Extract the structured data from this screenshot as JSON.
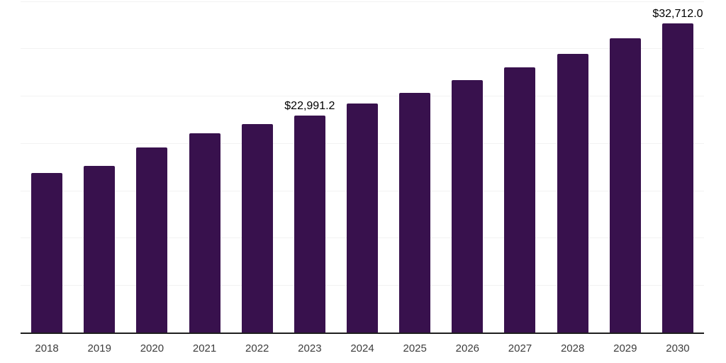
{
  "chart_data": {
    "type": "bar",
    "title": "",
    "xlabel": "",
    "ylabel": "",
    "categories": [
      "2018",
      "2019",
      "2020",
      "2021",
      "2022",
      "2023",
      "2024",
      "2025",
      "2026",
      "2027",
      "2028",
      "2029",
      "2030"
    ],
    "values": [
      16950,
      17650,
      19600,
      21100,
      22100,
      22991.2,
      24250,
      25400,
      26750,
      28100,
      29500,
      31150,
      32712
    ],
    "value_labels": {
      "2023": "$22,991.2",
      "2030": "$32,712.0"
    },
    "ylim": [
      0,
      35200
    ],
    "gridline_step": 5000,
    "grid": "horizontal-only",
    "legend": "none",
    "y_axis_ticks": "hidden",
    "colors": {
      "bar": "#38114D",
      "axis": "#1F1F1F",
      "gridline": "#F2F2F2",
      "tick_label": "#3D3D3D",
      "data_label": "#000000",
      "background": "#FFFFFF"
    }
  }
}
